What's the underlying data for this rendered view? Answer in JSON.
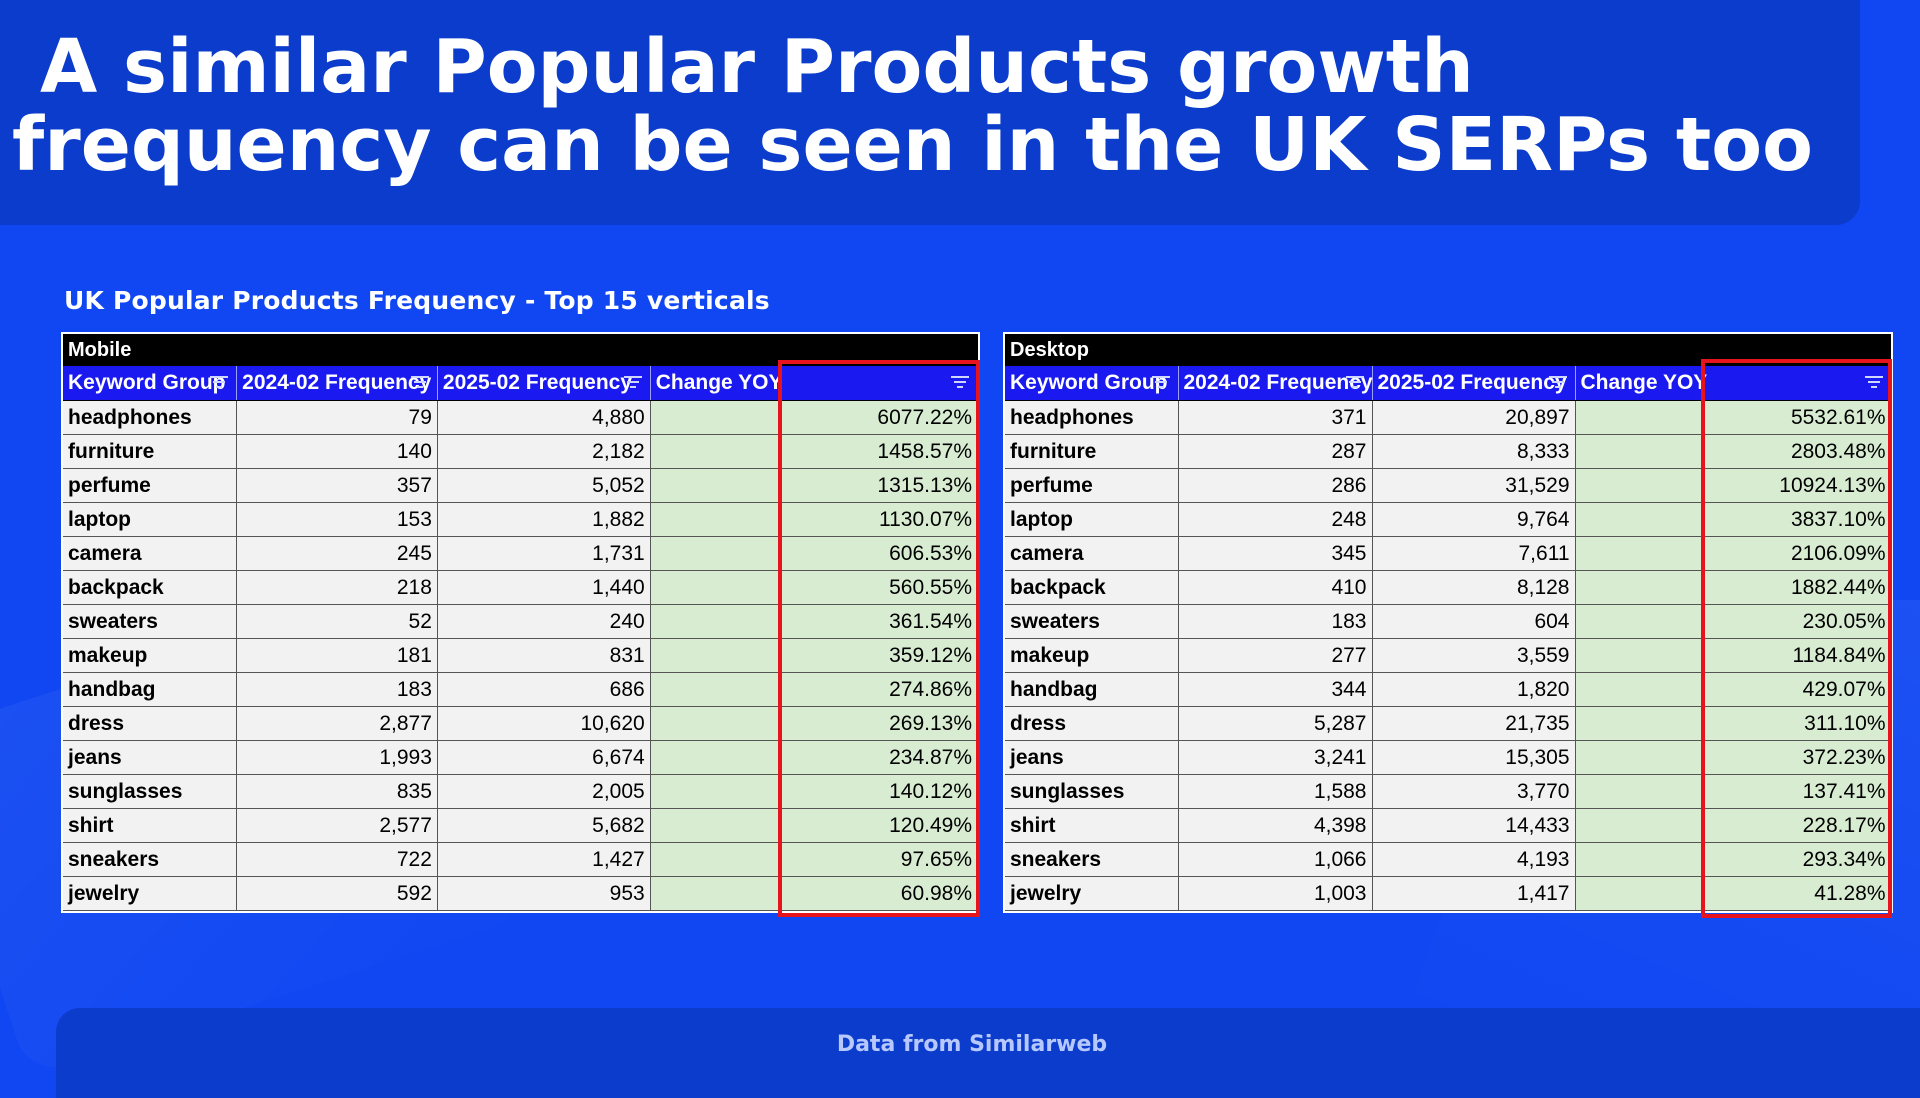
{
  "title": {
    "line1": "A similar Popular Products growth",
    "line2": "frequency can be seen in the UK SERPs too"
  },
  "subtitle": "UK Popular Products Frequency - Top 15 verticals",
  "columns": [
    "Keyword Group",
    "2024-02 Frequency",
    "2025-02 Frequency",
    "Change YOY"
  ],
  "mobile": {
    "label": "Mobile",
    "rows": [
      [
        "headphones",
        "79",
        "4,880",
        "6077.22%"
      ],
      [
        "furniture",
        "140",
        "2,182",
        "1458.57%"
      ],
      [
        "perfume",
        "357",
        "5,052",
        "1315.13%"
      ],
      [
        "laptop",
        "153",
        "1,882",
        "1130.07%"
      ],
      [
        "camera",
        "245",
        "1,731",
        "606.53%"
      ],
      [
        "backpack",
        "218",
        "1,440",
        "560.55%"
      ],
      [
        "sweaters",
        "52",
        "240",
        "361.54%"
      ],
      [
        "makeup",
        "181",
        "831",
        "359.12%"
      ],
      [
        "handbag",
        "183",
        "686",
        "274.86%"
      ],
      [
        "dress",
        "2,877",
        "10,620",
        "269.13%"
      ],
      [
        "jeans",
        "1,993",
        "6,674",
        "234.87%"
      ],
      [
        "sunglasses",
        "835",
        "2,005",
        "140.12%"
      ],
      [
        "shirt",
        "2,577",
        "5,682",
        "120.49%"
      ],
      [
        "sneakers",
        "722",
        "1,427",
        "97.65%"
      ],
      [
        "jewelry",
        "592",
        "953",
        "60.98%"
      ]
    ]
  },
  "desktop": {
    "label": "Desktop",
    "rows": [
      [
        "headphones",
        "371",
        "20,897",
        "5532.61%"
      ],
      [
        "furniture",
        "287",
        "8,333",
        "2803.48%"
      ],
      [
        "perfume",
        "286",
        "31,529",
        "10924.13%"
      ],
      [
        "laptop",
        "248",
        "9,764",
        "3837.10%"
      ],
      [
        "camera",
        "345",
        "7,611",
        "2106.09%"
      ],
      [
        "backpack",
        "410",
        "8,128",
        "1882.44%"
      ],
      [
        "sweaters",
        "183",
        "604",
        "230.05%"
      ],
      [
        "makeup",
        "277",
        "3,559",
        "1184.84%"
      ],
      [
        "handbag",
        "344",
        "1,820",
        "429.07%"
      ],
      [
        "dress",
        "5,287",
        "21,735",
        "311.10%"
      ],
      [
        "jeans",
        "3,241",
        "15,305",
        "372.23%"
      ],
      [
        "sunglasses",
        "1,588",
        "3,770",
        "137.41%"
      ],
      [
        "shirt",
        "4,398",
        "14,433",
        "228.17%"
      ],
      [
        "sneakers",
        "1,066",
        "4,193",
        "293.34%"
      ],
      [
        "jewelry",
        "1,003",
        "1,417",
        "41.28%"
      ]
    ]
  },
  "footer": "Data from Similarweb",
  "colors": {
    "background": "#1047f2",
    "band": "#0b3ccb",
    "header": "#1a1af0",
    "change_cell": "#d8ecd2",
    "highlight": "#e8141d"
  }
}
